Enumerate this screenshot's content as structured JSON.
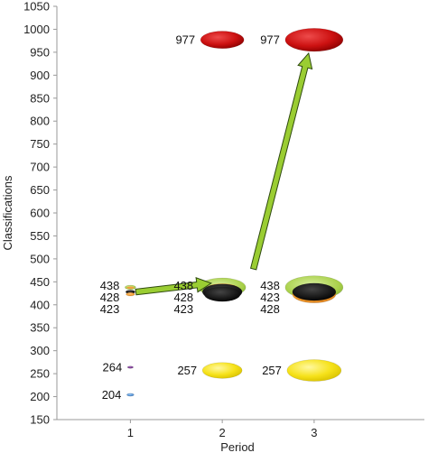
{
  "chart_data": {
    "type": "bubble",
    "xlabel": "Period",
    "ylabel": "Classifications",
    "ylim": [
      150,
      1050
    ],
    "y_ticks": [
      150,
      200,
      250,
      300,
      350,
      400,
      450,
      500,
      550,
      600,
      650,
      700,
      750,
      800,
      850,
      900,
      950,
      1000,
      1050
    ],
    "xlim": [
      0.2,
      4.2
    ],
    "x_ticks": [
      1,
      2,
      3
    ],
    "grid": false,
    "legend": "none",
    "points": [
      {
        "x": 1,
        "y": 438,
        "label": "438",
        "color": "#8fbe3a",
        "inner_color": "#f0a040",
        "size": 0.15
      },
      {
        "x": 1,
        "y": 428,
        "label": "428",
        "color": "#111111",
        "size": 0.13
      },
      {
        "x": 1,
        "y": 423,
        "label": "423",
        "color": "#f39c2c",
        "size": 0.12
      },
      {
        "x": 1,
        "y": 264,
        "label": "264",
        "color": "#7b2f8e",
        "size": 0.08
      },
      {
        "x": 1,
        "y": 204,
        "label": "204",
        "color": "#4a8fd4",
        "size": 0.1
      },
      {
        "x": 2,
        "y": 977,
        "label": "977",
        "color": "#cc1111",
        "size": 0.6
      },
      {
        "x": 2,
        "y": 438,
        "label": "438",
        "color": "#a8d048",
        "inner_color": "#f6a34a",
        "size": 0.65
      },
      {
        "x": 2,
        "y": 428,
        "label": "428",
        "color": "#111111",
        "size": 0.55
      },
      {
        "x": 2,
        "y": 423,
        "label": "423",
        "color": "#111111",
        "size": 0.5
      },
      {
        "x": 2,
        "y": 257,
        "label": "257",
        "color": "#f6e21a",
        "size": 0.55
      },
      {
        "x": 3,
        "y": 977,
        "label": "977",
        "color": "#cc1111",
        "size": 0.8
      },
      {
        "x": 3,
        "y": 438,
        "label": "438",
        "color": "#a8d048",
        "size": 0.8
      },
      {
        "x": 3,
        "y": 423,
        "label": "423",
        "color": "#f6913a",
        "size": 0.6
      },
      {
        "x": 3,
        "y": 428,
        "label": "428",
        "color": "#111111",
        "size": 0.6
      },
      {
        "x": 3,
        "y": 257,
        "label": "257",
        "color": "#f6e21a",
        "size": 0.75
      }
    ],
    "arrows": [
      {
        "from": [
          1.06,
          428
        ],
        "to": [
          1.88,
          447
        ]
      },
      {
        "from": [
          2.34,
          478
        ],
        "to": [
          2.94,
          948
        ]
      }
    ]
  },
  "colors": {
    "axis": "#9a9a9a",
    "arrow_fill": "#9acd32",
    "arrow_stroke": "#2f4a10"
  }
}
